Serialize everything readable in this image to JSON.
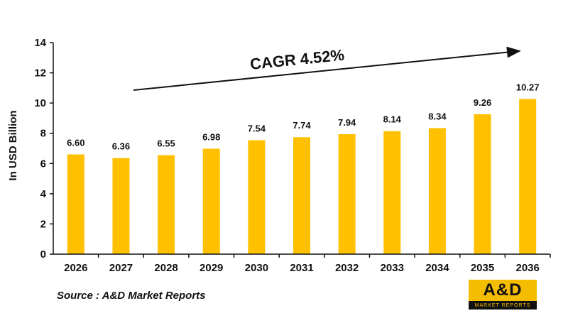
{
  "chart_data": {
    "type": "bar",
    "categories": [
      "2026",
      "2027",
      "2028",
      "2029",
      "2030",
      "2031",
      "2032",
      "2033",
      "2034",
      "2035",
      "2036"
    ],
    "values": [
      6.6,
      6.36,
      6.55,
      6.98,
      7.54,
      7.74,
      7.94,
      8.14,
      8.34,
      9.26,
      10.27
    ],
    "value_labels": [
      "6.60",
      "6.36",
      "6.55",
      "6.98",
      "7.54",
      "7.74",
      "7.94",
      "8.14",
      "8.34",
      "9.26",
      "10.27"
    ],
    "ylabel": "In USD Billion",
    "ylim": [
      0,
      14
    ],
    "yticks": [
      "0",
      "2",
      "4",
      "6",
      "8",
      "10",
      "12",
      "14"
    ],
    "bar_color": "#ffc000",
    "grid": false,
    "annotation": "CAGR 4.52%"
  },
  "source": "Source : A&D Market Reports",
  "logo": {
    "text": "A&D",
    "subtext": "MARKET REPORTS",
    "color": "#f5bd00"
  }
}
